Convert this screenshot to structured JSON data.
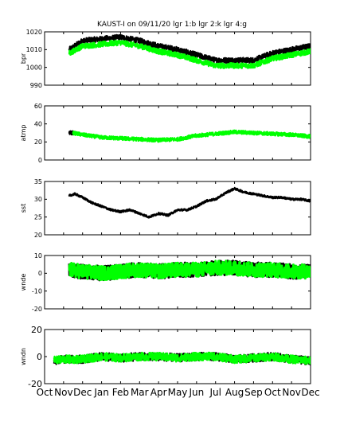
{
  "figure": {
    "title": "KAUST-I on 09/11/20 lgr 1:b lgr 2:k lgr 4:g"
  },
  "colors": {
    "lgr1": "#0000ff",
    "lgr2": "#000000",
    "lgr4": "#00ff00",
    "axes": "#000000",
    "background": "#ffffff"
  },
  "chart_data": [
    {
      "type": "scatter",
      "ylabel": "bpr",
      "ylim": [
        990,
        1020
      ],
      "yticks": [
        "990",
        "1000",
        "1010",
        "1020"
      ],
      "xlim": [
        0,
        14
      ],
      "grid": false,
      "series": [
        {
          "name": "lgr 2",
          "color": "#000000",
          "x": [
            1.3,
            2,
            3,
            4,
            5,
            6,
            7,
            8,
            9,
            10,
            11,
            12,
            13,
            14
          ],
          "values": [
            1010,
            1015,
            1016,
            1017,
            1015,
            1012,
            1010,
            1007,
            1004,
            1004,
            1004,
            1008,
            1010,
            1012
          ]
        },
        {
          "name": "lgr 4",
          "color": "#00ff00",
          "x": [
            1.3,
            2,
            3,
            4,
            5,
            6,
            7,
            8,
            9,
            10,
            11,
            12,
            13,
            14
          ],
          "values": [
            1008,
            1012,
            1013,
            1014,
            1012,
            1009,
            1007,
            1004,
            1001,
            1001,
            1001,
            1005,
            1007,
            1009
          ]
        }
      ]
    },
    {
      "type": "scatter",
      "ylabel": "atmp",
      "ylim": [
        0,
        60
      ],
      "yticks": [
        "0",
        "20",
        "40",
        "60"
      ],
      "xlim": [
        0,
        14
      ],
      "grid": false,
      "series": [
        {
          "name": "lgr 2",
          "color": "#000000",
          "x": [
            1.3,
            1.5
          ],
          "values": [
            30,
            30
          ]
        },
        {
          "name": "lgr 4",
          "color": "#00ff00",
          "x": [
            1.5,
            2,
            3,
            4,
            5,
            6,
            7,
            8,
            9,
            10,
            11,
            12,
            13,
            14
          ],
          "values": [
            30,
            28,
            25,
            24,
            23,
            22,
            23,
            27,
            29,
            31,
            30,
            29,
            28,
            26
          ]
        }
      ]
    },
    {
      "type": "line",
      "ylabel": "sst",
      "ylim": [
        20,
        35
      ],
      "yticks": [
        "20",
        "25",
        "30",
        "35"
      ],
      "xlim": [
        0,
        14
      ],
      "grid": false,
      "series": [
        {
          "name": "lgr 2",
          "color": "#000000",
          "x": [
            1.3,
            1.6,
            2,
            2.5,
            3,
            3.5,
            4,
            4.5,
            5,
            5.5,
            6,
            6.5,
            7,
            7.5,
            8,
            8.5,
            9,
            9.3,
            9.6,
            10,
            10.5,
            11,
            11.5,
            12,
            12.5,
            13,
            13.5,
            14
          ],
          "values": [
            31,
            31.5,
            30.5,
            29,
            28,
            27,
            26.5,
            27,
            26,
            25,
            26,
            25.5,
            27,
            27,
            28,
            29.5,
            30,
            31,
            32,
            33,
            32,
            31.5,
            31,
            30.5,
            30.5,
            30,
            30,
            29.5
          ]
        }
      ]
    },
    {
      "type": "scatter",
      "ylabel": "wnde",
      "ylim": [
        -20,
        10
      ],
      "yticks": [
        "-20",
        "-10",
        "0",
        "10"
      ],
      "xlim": [
        0,
        14
      ],
      "grid": false,
      "series": [
        {
          "name": "lgr 2",
          "color": "#000000",
          "x": [
            1.3,
            2,
            3,
            4,
            5,
            6,
            7,
            8,
            9,
            10,
            11,
            12,
            13,
            14
          ],
          "values": [
            2,
            1,
            0,
            1,
            2,
            1,
            2,
            2,
            3,
            3,
            2,
            2,
            1,
            1
          ]
        },
        {
          "name": "lgr 4",
          "color": "#00ff00",
          "x": [
            1.3,
            2,
            3,
            4,
            5,
            6,
            7,
            8,
            9,
            10,
            11,
            12,
            13,
            14
          ],
          "values": [
            2,
            1,
            0,
            1,
            2,
            1,
            2,
            2,
            3,
            3,
            2,
            2,
            1,
            1
          ]
        }
      ]
    },
    {
      "type": "scatter",
      "ylabel": "wndn",
      "ylim": [
        -20,
        20
      ],
      "yticks": [
        "-20",
        "0",
        "20"
      ],
      "xlim": [
        0,
        14
      ],
      "xticks": [
        "Oct",
        "Nov",
        "Dec",
        "Jan",
        "Feb",
        "Mar",
        "Apr",
        "May",
        "Jun",
        "Jul",
        "Aug",
        "Sep",
        "Oct",
        "Nov",
        "Dec"
      ],
      "grid": false,
      "series": [
        {
          "name": "lgr 2",
          "color": "#000000",
          "x": [
            0.5,
            1,
            2,
            3,
            4,
            5,
            6,
            7,
            8,
            9,
            10,
            11,
            12,
            13,
            14
          ],
          "values": [
            -3,
            -2,
            -2,
            0,
            -1,
            0,
            0,
            -1,
            0,
            0,
            -2,
            -1,
            0,
            -2,
            -3
          ]
        },
        {
          "name": "lgr 4",
          "color": "#00ff00",
          "x": [
            0.5,
            1,
            2,
            3,
            4,
            5,
            6,
            7,
            8,
            9,
            10,
            11,
            12,
            13,
            14
          ],
          "values": [
            -3,
            -2,
            -2,
            0,
            -1,
            0,
            0,
            -1,
            0,
            0,
            -2,
            -1,
            0,
            -2,
            -3
          ]
        }
      ]
    }
  ]
}
